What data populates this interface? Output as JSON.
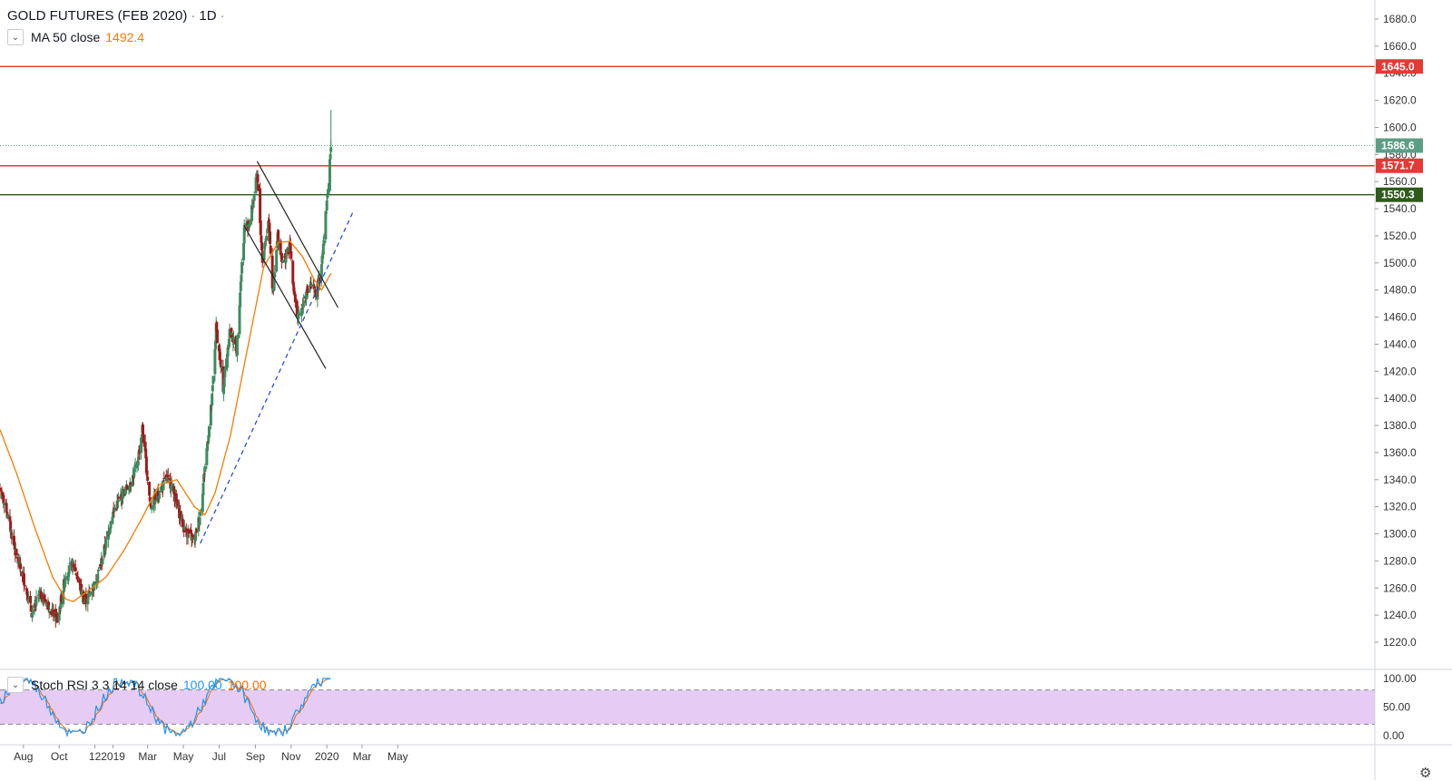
{
  "header": {
    "symbol": "GOLD FUTURES (FEB 2020)",
    "interval": "1D",
    "trail": "·"
  },
  "legend_ma": {
    "label": "MA 50 close",
    "value": "1492.4"
  },
  "legend_rsi": {
    "label": "Stoch RSI 3 3 14 14 close",
    "k": "100.00",
    "d": "100.00"
  },
  "icons": {
    "collapse": "chevron-down-icon",
    "settings": "gear-icon"
  },
  "colors": {
    "up": "#3d8b5f",
    "down": "#9e1b1b",
    "ma": "#f57c00",
    "resistance": "#e53935",
    "support_green": "#2e5a1c",
    "trend_blue": "#1e3fd6",
    "last_price": "#5b9e86",
    "rsi_k": "#2196f3",
    "rsi_d": "#ef6c00",
    "rsi_band": "#e6ccf5"
  },
  "chart_data": {
    "type": "candlestick",
    "price_axis": {
      "ylim": [
        1210,
        1690
      ],
      "ticks": [
        "1680.0",
        "1660.0",
        "1640.0",
        "1620.0",
        "1600.0",
        "1580.0",
        "1560.0",
        "1540.0",
        "1520.0",
        "1500.0",
        "1480.0",
        "1460.0",
        "1440.0",
        "1420.0",
        "1400.0",
        "1380.0",
        "1360.0",
        "1340.0",
        "1320.0",
        "1300.0",
        "1280.0",
        "1260.0",
        "1240.0",
        "1220.0"
      ]
    },
    "time_axis": {
      "ticks": [
        "Aug",
        "Oct",
        "12",
        "2019",
        "Mar",
        "May",
        "Jul",
        "Sep",
        "Nov",
        "2020",
        "Mar",
        "May"
      ]
    },
    "price_labels": [
      {
        "value": "1645.0",
        "kind": "resistance"
      },
      {
        "value": "1586.6",
        "kind": "last"
      },
      {
        "value": "1571.7",
        "kind": "resistance"
      },
      {
        "value": "1550.3",
        "kind": "support"
      }
    ],
    "horizontal_lines": [
      1645.0,
      1571.7,
      1550.3
    ],
    "last_price": 1586.6,
    "anchors": [
      [
        "2018-06-22",
        1332
      ],
      [
        "2018-07-03",
        1318
      ],
      [
        "2018-07-20",
        1283
      ],
      [
        "2018-08-01",
        1268
      ],
      [
        "2018-08-16",
        1240
      ],
      [
        "2018-08-28",
        1256
      ],
      [
        "2018-09-12",
        1248
      ],
      [
        "2018-09-28",
        1236
      ],
      [
        "2018-10-12",
        1270
      ],
      [
        "2018-10-25",
        1278
      ],
      [
        "2018-11-13",
        1250
      ],
      [
        "2018-11-30",
        1262
      ],
      [
        "2018-12-14",
        1282
      ],
      [
        "2018-12-31",
        1315
      ],
      [
        "2019-01-15",
        1328
      ],
      [
        "2019-01-30",
        1337
      ],
      [
        "2019-02-11",
        1350
      ],
      [
        "2019-02-20",
        1378
      ],
      [
        "2019-03-06",
        1320
      ],
      [
        "2019-03-20",
        1330
      ],
      [
        "2019-04-01",
        1340
      ],
      [
        "2019-04-10",
        1337
      ],
      [
        "2019-04-23",
        1317
      ],
      [
        "2019-05-03",
        1303
      ],
      [
        "2019-05-20",
        1295
      ],
      [
        "2019-05-30",
        1316
      ],
      [
        "2019-06-06",
        1346
      ],
      [
        "2019-06-19",
        1400
      ],
      [
        "2019-06-26",
        1452
      ],
      [
        "2019-07-08",
        1408
      ],
      [
        "2019-07-19",
        1450
      ],
      [
        "2019-07-31",
        1436
      ],
      [
        "2019-08-06",
        1480
      ],
      [
        "2019-08-13",
        1525
      ],
      [
        "2019-08-23",
        1531
      ],
      [
        "2019-09-04",
        1565
      ],
      [
        "2019-09-13",
        1502
      ],
      [
        "2019-09-24",
        1533
      ],
      [
        "2019-10-01",
        1475
      ],
      [
        "2019-10-09",
        1520
      ],
      [
        "2019-10-18",
        1500
      ],
      [
        "2019-10-30",
        1512
      ],
      [
        "2019-11-05",
        1484
      ],
      [
        "2019-11-12",
        1457
      ],
      [
        "2019-11-25",
        1476
      ],
      [
        "2019-12-04",
        1482
      ],
      [
        "2019-12-13",
        1478
      ],
      [
        "2019-12-20",
        1488
      ],
      [
        "2019-12-26",
        1515
      ],
      [
        "2020-01-02",
        1550
      ],
      [
        "2020-01-06",
        1575
      ],
      [
        "2020-01-08",
        1586.6
      ]
    ],
    "ma": {
      "label": "MA 50 close",
      "anchors": [
        [
          "2018-06-22",
          1377
        ],
        [
          "2018-07-20",
          1345
        ],
        [
          "2018-08-20",
          1305
        ],
        [
          "2018-09-20",
          1268
        ],
        [
          "2018-10-12",
          1252
        ],
        [
          "2018-10-25",
          1250
        ],
        [
          "2018-11-20",
          1258
        ],
        [
          "2018-12-20",
          1268
        ],
        [
          "2019-01-20",
          1288
        ],
        [
          "2019-02-20",
          1312
        ],
        [
          "2019-03-20",
          1336
        ],
        [
          "2019-04-20",
          1340
        ],
        [
          "2019-05-20",
          1320
        ],
        [
          "2019-06-07",
          1314
        ],
        [
          "2019-06-24",
          1330
        ],
        [
          "2019-07-20",
          1372
        ],
        [
          "2019-08-20",
          1440
        ],
        [
          "2019-09-15",
          1497
        ],
        [
          "2019-10-10",
          1515
        ],
        [
          "2019-10-30",
          1516
        ],
        [
          "2019-11-20",
          1505
        ],
        [
          "2019-12-10",
          1488
        ],
        [
          "2019-12-23",
          1480
        ],
        [
          "2020-01-08",
          1492.4
        ]
      ]
    },
    "stoch_rsi": {
      "label": "Stoch RSI 3 3 14 14 close",
      "k": 100.0,
      "d": 100.0,
      "ylim": [
        -5,
        105
      ],
      "ticks": [
        "100.00",
        "50.00",
        "0.00"
      ],
      "bands": [
        20,
        80
      ]
    },
    "channel": {
      "upper": [
        [
          "2019-09-04",
          1575
        ],
        [
          "2020-01-20",
          1467
        ]
      ],
      "lower": [
        [
          "2019-08-12",
          1528
        ],
        [
          "2019-12-30",
          1422
        ]
      ]
    },
    "trendline": [
      [
        "2019-05-30",
        1293
      ],
      [
        "2020-02-15",
        1538
      ]
    ]
  }
}
